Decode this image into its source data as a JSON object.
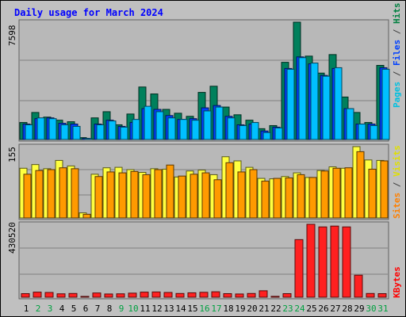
{
  "chart_data": {
    "title": "Daily usage for March 2024",
    "type": "bar",
    "days": [
      "1",
      "2",
      "3",
      "4",
      "5",
      "6",
      "7",
      "8",
      "9",
      "10",
      "11",
      "12",
      "13",
      "14",
      "15",
      "16",
      "17",
      "18",
      "19",
      "20",
      "21",
      "22",
      "23",
      "24",
      "25",
      "26",
      "27",
      "28",
      "29",
      "30",
      "31"
    ],
    "weekend_days": [
      "2",
      "3",
      "9",
      "10",
      "16",
      "17",
      "23",
      "24",
      "30",
      "31"
    ],
    "panels": [
      {
        "id": "hits-files-pages",
        "ymax_label": "7598",
        "ymax": 7598,
        "label_parts": [
          {
            "text": "Pages",
            "color": "#00c0e0"
          },
          {
            "text": " / ",
            "color": "#404040"
          },
          {
            "text": "Files",
            "color": "#0040ff"
          },
          {
            "text": " / ",
            "color": "#404040"
          },
          {
            "text": "Hits",
            "color": "#008040"
          }
        ],
        "series": [
          {
            "name": "Hits",
            "color": "#00805c",
            "values": [
              1100,
              1750,
              1450,
              1250,
              1150,
              120,
              1400,
              1800,
              950,
              1650,
              3400,
              2950,
              1950,
              1700,
              1500,
              3050,
              3450,
              2100,
              1600,
              1250,
              700,
              900,
              5000,
              7598,
              5400,
              4300,
              5500,
              2750,
              1750,
              1100,
              4800
            ]
          },
          {
            "name": "Files",
            "color": "#0040ff",
            "values": [
              1000,
              1350,
              1400,
              1050,
              1000,
              70,
              1000,
              1250,
              850,
              1100,
              2000,
              1950,
              1550,
              1300,
              1350,
              2050,
              2200,
              1500,
              950,
              1000,
              550,
              800,
              4600,
              5350,
              4900,
              4150,
              4600,
              2000,
              1000,
              1000,
              4650
            ]
          },
          {
            "name": "Pages",
            "color": "#00c0ff",
            "values": [
              950,
              1400,
              1350,
              950,
              850,
              60,
              950,
              1200,
              800,
              1300,
              2150,
              1800,
              1400,
              1300,
              1250,
              1850,
              2100,
              1400,
              900,
              1100,
              450,
              750,
              4550,
              5300,
              4950,
              4100,
              4650,
              2000,
              1000,
              900,
              4550
            ]
          }
        ]
      },
      {
        "id": "visits-sites",
        "ymax_label": "155",
        "ymax": 155,
        "label_parts": [
          {
            "text": "Sites",
            "color": "#ff8000"
          },
          {
            "text": " / ",
            "color": "#404040"
          },
          {
            "text": "Visits",
            "color": "#e0e000"
          }
        ],
        "series": [
          {
            "name": "Visits",
            "color": "#ffff40",
            "values": [
              108,
              116,
              107,
              125,
              113,
              11,
              95,
              109,
              110,
              105,
              99,
              107,
              106,
              89,
              102,
              104,
              94,
              133,
              124,
              110,
              86,
              85,
              90,
              98,
              88,
              103,
              111,
              108,
              155,
              126,
              125
            ]
          },
          {
            "name": "Sites",
            "color": "#ff9a00",
            "values": [
              95,
              103,
              105,
              109,
              107,
              8,
              90,
              100,
              98,
              101,
              94,
              105,
              115,
              91,
              95,
              98,
              83,
              120,
              100,
              105,
              80,
              86,
              87,
              94,
              88,
              102,
              108,
              109,
              144,
              106,
              124
            ]
          }
        ]
      },
      {
        "id": "kbytes",
        "ymax_label": "430520",
        "ymax": 430520,
        "label_parts": [
          {
            "text": "KBytes",
            "color": "#ff0000"
          }
        ],
        "series": [
          {
            "name": "KBytes",
            "color": "#ff2020",
            "values": [
              21000,
              30000,
              28000,
              20000,
              22000,
              4000,
              25000,
              19000,
              20000,
              24000,
              30000,
              31000,
              28000,
              22000,
              26000,
              29000,
              32000,
              21000,
              19000,
              22000,
              38000,
              5000,
              21000,
              340000,
              430520,
              415000,
              420000,
              415000,
              130000,
              22000,
              21000
            ]
          }
        ]
      }
    ]
  }
}
